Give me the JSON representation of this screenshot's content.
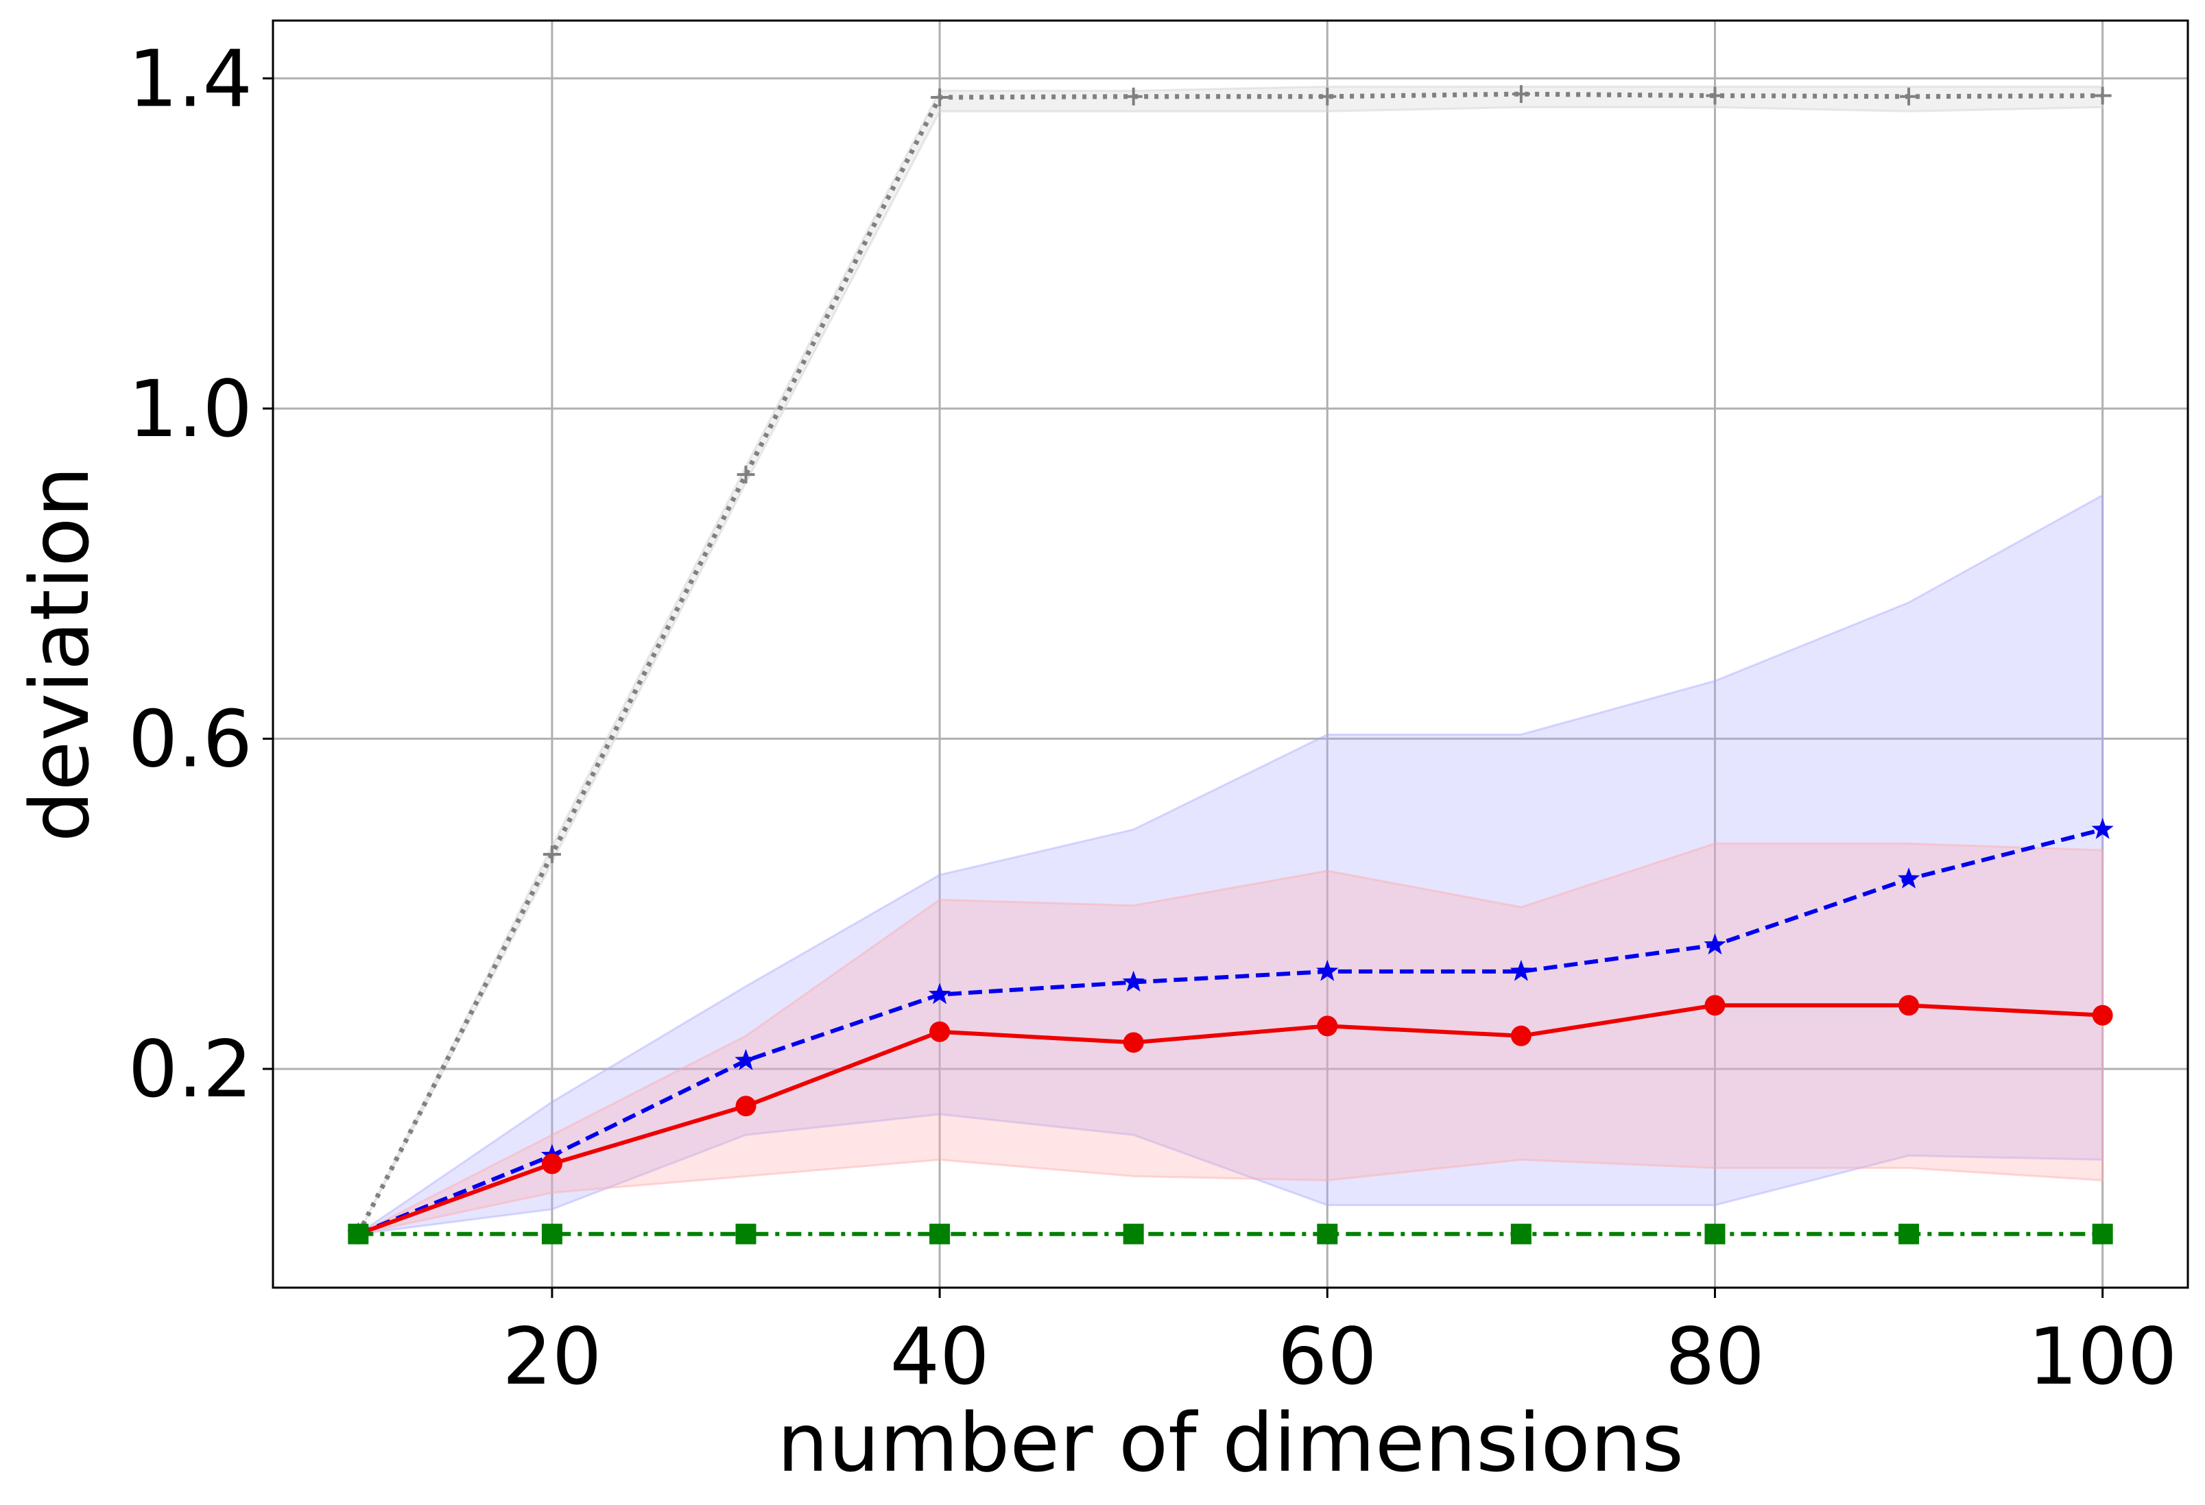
{
  "chart_data": {
    "type": "line",
    "xlabel": "number of dimensions",
    "ylabel": "deviation",
    "xlim": [
      5.6,
      104.4
    ],
    "ylim": [
      -0.065,
      1.47
    ],
    "xticks": [
      20,
      40,
      60,
      80,
      100
    ],
    "xtick_labels": [
      "20",
      "40",
      "60",
      "80",
      "100"
    ],
    "yticks": [
      0.2,
      0.6,
      1.0,
      1.4
    ],
    "ytick_labels": [
      "0.2",
      "0.6",
      "1.0",
      "1.4"
    ],
    "grid": true,
    "x": [
      10,
      20,
      30,
      40,
      50,
      60,
      70,
      80,
      90,
      100
    ],
    "series": [
      {
        "color": "#808080",
        "linestyle": "dotted",
        "marker": "plus",
        "values": [
          0.0,
          0.46,
          0.92,
          1.377,
          1.378,
          1.378,
          1.381,
          1.379,
          1.378,
          1.379
        ],
        "band_lower": [
          0.0,
          0.45,
          0.91,
          1.36,
          1.36,
          1.36,
          1.365,
          1.365,
          1.36,
          1.365
        ],
        "band_upper": [
          0.0,
          0.47,
          0.93,
          1.385,
          1.385,
          1.39,
          1.39,
          1.39,
          1.39,
          1.39
        ],
        "band_color": "#d0d0d0"
      },
      {
        "color": "#0000ee",
        "linestyle": "dashed",
        "marker": "star",
        "values": [
          0.0,
          0.095,
          0.21,
          0.29,
          0.305,
          0.318,
          0.318,
          0.35,
          0.43,
          0.49
        ],
        "band_lower": [
          0.0,
          0.03,
          0.12,
          0.145,
          0.12,
          0.035,
          0.035,
          0.035,
          0.095,
          0.09
        ],
        "band_upper": [
          0.0,
          0.16,
          0.3,
          0.435,
          0.49,
          0.605,
          0.605,
          0.67,
          0.765,
          0.895
        ],
        "band_color": "#aaaaff"
      },
      {
        "color": "#ee0000",
        "linestyle": "solid",
        "marker": "circle",
        "values": [
          0.0,
          0.085,
          0.155,
          0.245,
          0.232,
          0.252,
          0.24,
          0.277,
          0.277,
          0.265
        ],
        "band_lower": [
          0.0,
          0.05,
          0.07,
          0.09,
          0.07,
          0.065,
          0.09,
          0.08,
          0.08,
          0.065
        ],
        "band_upper": [
          0.0,
          0.12,
          0.24,
          0.405,
          0.398,
          0.44,
          0.396,
          0.473,
          0.473,
          0.465
        ],
        "band_color": "#ffaaaa"
      },
      {
        "color": "#008000",
        "linestyle": "dashdot",
        "marker": "square",
        "values": [
          0,
          0,
          0,
          0,
          0,
          0,
          0,
          0,
          0,
          0
        ]
      }
    ]
  }
}
